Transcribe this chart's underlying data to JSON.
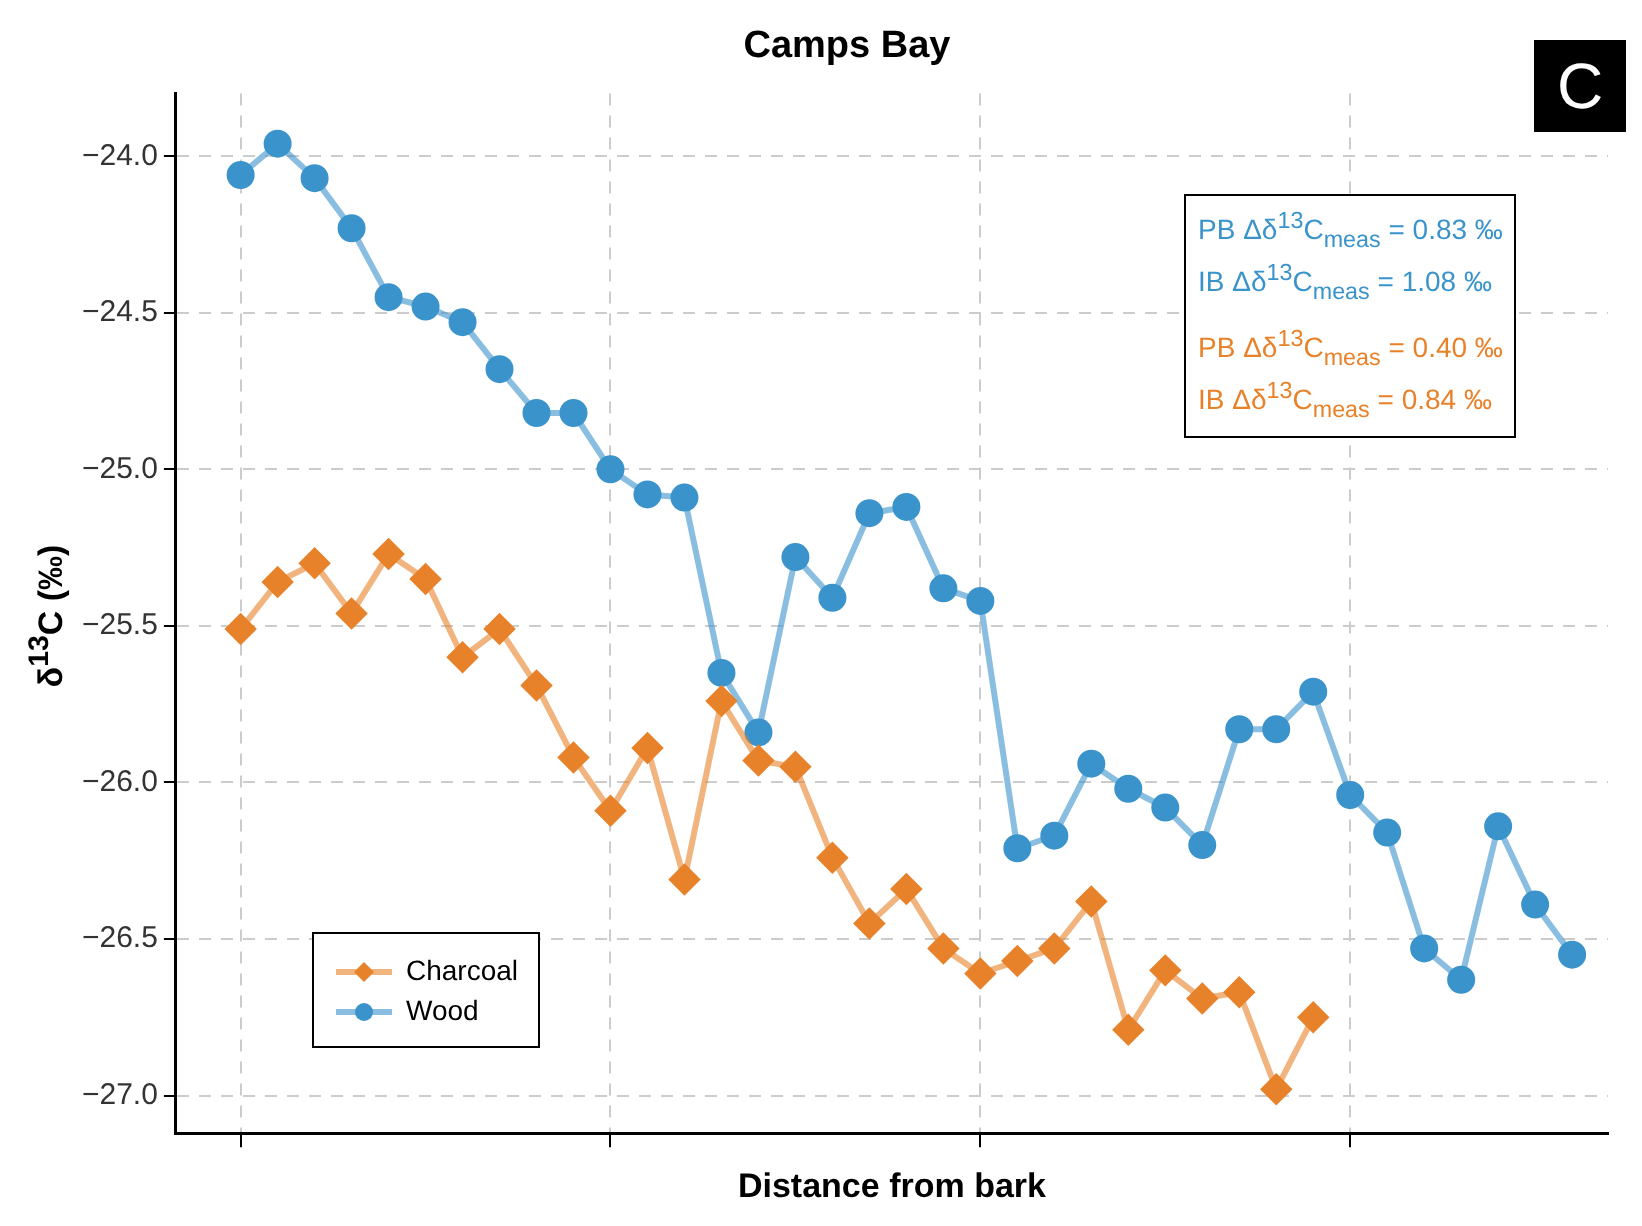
{
  "chart_data": {
    "type": "line",
    "title": "Camps Bay",
    "xlabel": "Distance from bark",
    "ylabel": "δ$^{13}$C (‰)",
    "categories": [
      null,
      null,
      null,
      null,
      null,
      null,
      null,
      null,
      null,
      null,
      null,
      null,
      null,
      null,
      null,
      null,
      null,
      null,
      null,
      null,
      null,
      null,
      null,
      null,
      null,
      null,
      null,
      null,
      null,
      null,
      null,
      null,
      null,
      null,
      null,
      null,
      null
    ],
    "series": [
      {
        "name": "Charcoal",
        "color": "#e8822a",
        "marker": "diamond",
        "values": [
          -25.51,
          -25.36,
          -25.3,
          -25.46,
          -25.27,
          -25.35,
          -25.6,
          -25.51,
          -25.69,
          -25.92,
          -26.09,
          -25.89,
          -26.31,
          -25.74,
          -25.93,
          -25.95,
          -26.24,
          -26.45,
          -26.34,
          -26.53,
          -26.61,
          -26.57,
          -26.53,
          -26.38,
          -26.79,
          -26.6,
          -26.69,
          -26.67,
          -26.98,
          -26.75,
          null,
          null,
          null,
          null,
          null,
          null,
          null
        ]
      },
      {
        "name": "Wood",
        "color": "#3a93cb",
        "marker": "circle",
        "values": [
          -24.06,
          -23.96,
          -24.07,
          -24.23,
          -24.45,
          -24.48,
          -24.53,
          -24.68,
          -24.82,
          -24.82,
          -25.0,
          -25.08,
          -25.09,
          -25.65,
          -25.84,
          -25.28,
          -25.41,
          -25.14,
          -25.12,
          -25.38,
          -25.42,
          -26.21,
          -26.17,
          -25.94,
          -26.02,
          -26.08,
          -26.2,
          -25.83,
          -25.83,
          -25.71,
          -26.04,
          -26.16,
          -26.53,
          -26.63,
          -26.14,
          -26.39,
          -26.55
        ]
      }
    ],
    "ylim": [
      -27.12,
      -23.8
    ],
    "yticks": [
      {
        "value": -27,
        "label": "−27.0"
      },
      {
        "value": -26.5,
        "label": "−26.5"
      },
      {
        "value": -26,
        "label": "−26.0"
      },
      {
        "value": -25.5,
        "label": "−25.5"
      },
      {
        "value": -25,
        "label": "−25.0"
      },
      {
        "value": -24.5,
        "label": "−24.5"
      },
      {
        "value": -24,
        "label": "−24.0"
      }
    ],
    "tick_labels": "y",
    "grid": true,
    "legend": "bottom left",
    "line_style": "solid",
    "annotations": [
      "C",
      "PB Δδ$^{13}$C$_{meas}$ = 0.83 ‰",
      "IB Δδ$^{13}$C$_{meas}$ = 1.08 ‰",
      "PB Δδ$^{13}$C$_{meas}$ = 0.40 ‰",
      "IB Δδ$^{13}$C$_{meas}$ = 0.84 ‰"
    ]
  }
}
